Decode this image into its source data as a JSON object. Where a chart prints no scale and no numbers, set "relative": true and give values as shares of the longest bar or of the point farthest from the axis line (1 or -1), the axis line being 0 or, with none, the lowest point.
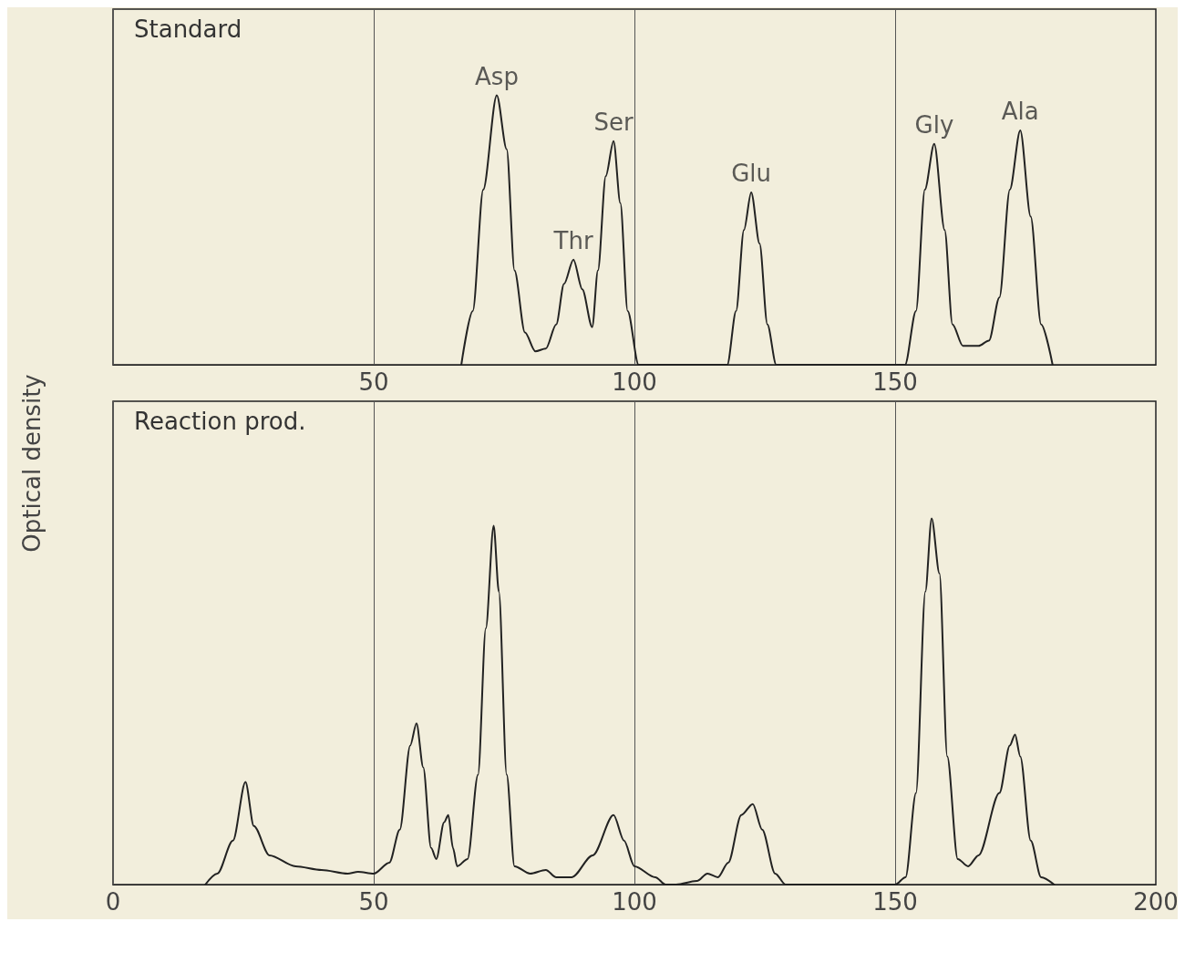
{
  "chart_data": [
    {
      "type": "line",
      "title": "Standard",
      "ylabel": "Optical density",
      "relative": true,
      "xlim": [
        0,
        200
      ],
      "xticks": [
        {
          "value": 0,
          "label": null
        },
        50,
        100,
        150,
        {
          "value": 200,
          "label": null
        }
      ],
      "tick_labels": "x",
      "grid": "x",
      "marker": "none",
      "line_style": "solid",
      "series": [
        {
          "color": "#222222",
          "x": [
            66.8,
            69,
            71,
            73.6,
            75.5,
            77,
            79,
            81,
            83,
            85,
            86.5,
            88.3,
            90,
            91.9,
            93,
            94.5,
            96,
            97.3,
            98.7,
            100.8,
            117.8,
            119.5,
            121,
            122.4,
            124,
            125.5,
            127.2,
            151.9,
            154,
            155.7,
            157.5,
            159.5,
            161,
            163,
            166,
            168,
            170,
            172,
            174,
            176,
            178,
            180.2
          ],
          "values": [
            0,
            0.2,
            0.65,
            1,
            0.8,
            0.35,
            0.12,
            0.05,
            0.06,
            0.15,
            0.3,
            0.39,
            0.28,
            0.14,
            0.35,
            0.7,
            0.83,
            0.6,
            0.2,
            0,
            0,
            0.2,
            0.5,
            0.64,
            0.45,
            0.15,
            0,
            0,
            0.2,
            0.65,
            0.82,
            0.5,
            0.15,
            0.07,
            0.07,
            0.09,
            0.25,
            0.65,
            0.87,
            0.55,
            0.15,
            0
          ]
        }
      ],
      "annotations": [
        {
          "text": "Asp",
          "x": 73.6,
          "y": 1
        },
        {
          "text": "Thr",
          "x": 88.3,
          "y": 0.39
        },
        {
          "text": "Ser",
          "x": 96,
          "y": 0.83
        },
        {
          "text": "Glu",
          "x": 122.4,
          "y": 0.64
        },
        {
          "text": "Gly",
          "x": 157.5,
          "y": 0.82
        },
        {
          "text": "Ala",
          "x": 174,
          "y": 0.87
        }
      ]
    },
    {
      "type": "line",
      "title": "Reaction prod.",
      "relative": true,
      "xlim": [
        0,
        200
      ],
      "xticks": [
        0,
        50,
        100,
        150,
        200
      ],
      "tick_labels": "x",
      "grid": "x",
      "marker": "none",
      "line_style": "solid",
      "series": [
        {
          "color": "#222222",
          "x": [
            17.7,
            20,
            23,
            25.4,
            27,
            30,
            35,
            40,
            45,
            47,
            50,
            53,
            55,
            57,
            58.2,
            59.5,
            61,
            62,
            63.5,
            64.3,
            65.2,
            66,
            68,
            70,
            71.5,
            73,
            74,
            75.5,
            77,
            80,
            83,
            85,
            88,
            92,
            96,
            98,
            100,
            104,
            106,
            108,
            112,
            114,
            116,
            118,
            120.5,
            122.7,
            124.5,
            127,
            129,
            150,
            152,
            154,
            155.8,
            157,
            158.5,
            160,
            162,
            164,
            166,
            170,
            172,
            173,
            174,
            176,
            178,
            180.5
          ],
          "values": [
            0,
            0.03,
            0.12,
            0.28,
            0.16,
            0.08,
            0.05,
            0.04,
            0.03,
            0.035,
            0.03,
            0.06,
            0.15,
            0.38,
            0.44,
            0.32,
            0.1,
            0.07,
            0.17,
            0.19,
            0.1,
            0.05,
            0.07,
            0.3,
            0.7,
            0.98,
            0.8,
            0.3,
            0.05,
            0.03,
            0.04,
            0.02,
            0.02,
            0.08,
            0.19,
            0.12,
            0.05,
            0.02,
            0,
            0,
            0.01,
            0.03,
            0.02,
            0.06,
            0.19,
            0.22,
            0.15,
            0.03,
            0,
            0,
            0.02,
            0.25,
            0.8,
            1,
            0.85,
            0.35,
            0.07,
            0.05,
            0.08,
            0.25,
            0.38,
            0.41,
            0.35,
            0.12,
            0.02,
            0
          ]
        }
      ]
    }
  ]
}
